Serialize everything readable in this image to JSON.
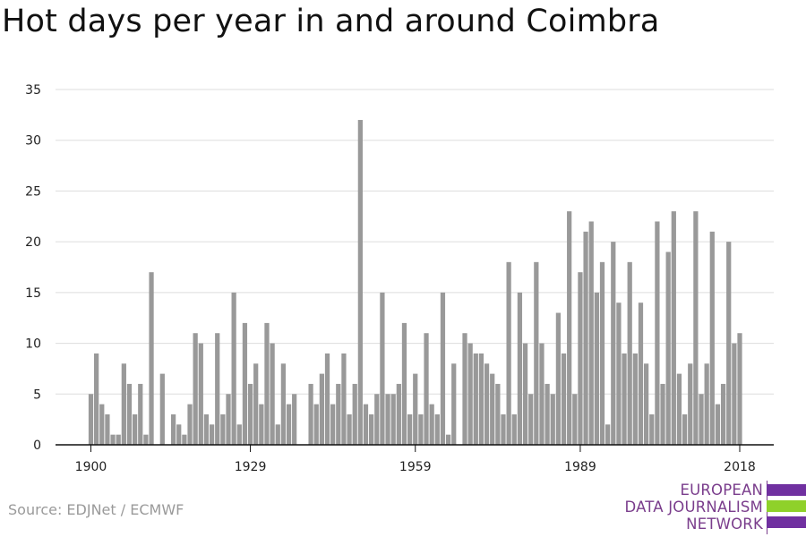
{
  "title": "Hot days per year in and around Coimbra",
  "source": "Source: EDJNet / ECMWF",
  "logo": {
    "lines": [
      "EUROPEAN",
      "DATA JOURNALISM",
      "NETWORK"
    ],
    "colors": {
      "purple": "#7030a0",
      "green": "#8fd12a",
      "text": "#7a3d8c"
    }
  },
  "colors": {
    "bar": "#999999",
    "grid": "#dddddd",
    "axis": "#111111"
  },
  "chart_data": {
    "type": "bar",
    "title": "Hot days per year in and around Coimbra",
    "xlabel": "",
    "ylabel": "",
    "x_start": 1900,
    "x_end": 2018,
    "x_ticks": [
      1900,
      1929,
      1959,
      1989,
      2018
    ],
    "y_ticks": [
      0,
      5,
      10,
      15,
      20,
      25,
      30,
      35
    ],
    "ylim": [
      0,
      35
    ],
    "grid": true,
    "legend": "none",
    "values": [
      5,
      9,
      4,
      3,
      1,
      1,
      8,
      6,
      3,
      6,
      1,
      17,
      0,
      7,
      0,
      3,
      2,
      1,
      4,
      11,
      10,
      3,
      2,
      11,
      3,
      5,
      15,
      2,
      12,
      6,
      8,
      4,
      12,
      10,
      2,
      8,
      4,
      5,
      0,
      0,
      6,
      4,
      7,
      9,
      4,
      6,
      9,
      3,
      6,
      32,
      4,
      3,
      5,
      15,
      5,
      5,
      6,
      12,
      3,
      7,
      3,
      11,
      4,
      3,
      15,
      1,
      8,
      0,
      11,
      10,
      9,
      9,
      8,
      7,
      6,
      3,
      18,
      3,
      15,
      10,
      5,
      18,
      10,
      6,
      5,
      13,
      9,
      23,
      5,
      17,
      21,
      22,
      15,
      18,
      2,
      20,
      14,
      9,
      18,
      9,
      14,
      8,
      3,
      22,
      6,
      19,
      23,
      7,
      3,
      8,
      23,
      5,
      8,
      21,
      4,
      6,
      20,
      10,
      11
    ]
  }
}
